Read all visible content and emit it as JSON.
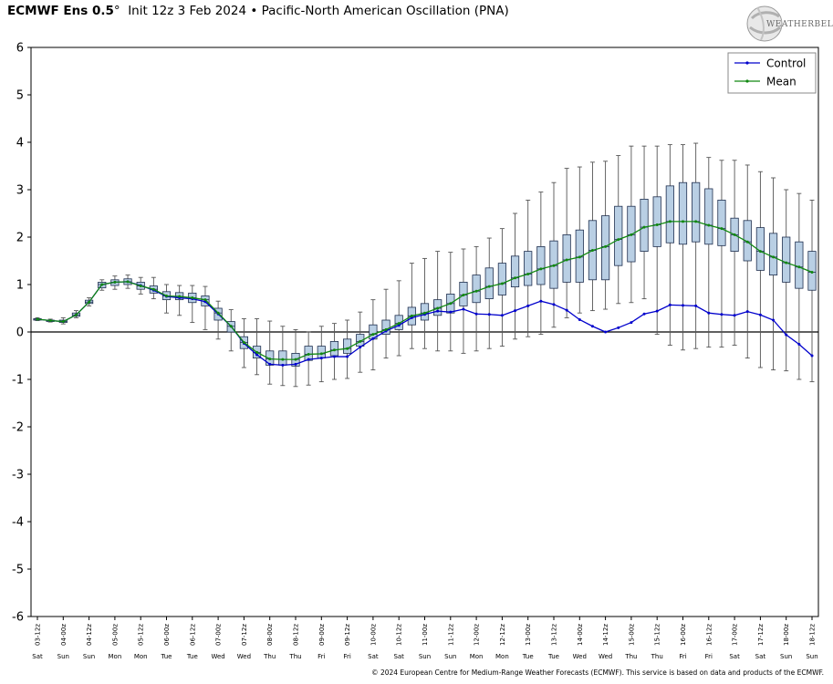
{
  "header": {
    "model": "ECMWF Ens 0.5",
    "degree": "°",
    "init": "Init 12z 3 Feb 2024",
    "bullet": "•",
    "index": "Pacific-North American Oscillation (PNA)"
  },
  "logo": {
    "text": "WEATHERBELL",
    "icon": "globe-logo-icon"
  },
  "footer": "© 2024 European Centre for Medium-Range Weather Forecasts (ECMWF). This service is based on data and products of the ECMWF.",
  "colors": {
    "control": "#0000cc",
    "mean": "#118811",
    "box_fill": "#b9cfe4",
    "whisker": "#555555"
  },
  "chart_data": {
    "type": "box-line",
    "ylim": [
      -6,
      6
    ],
    "yticks": [
      6,
      5,
      4,
      3,
      2,
      1,
      0,
      -1,
      -2,
      -3,
      -4,
      -5,
      -6
    ],
    "grid": false,
    "zero_line": true,
    "legend": {
      "position": "top-right",
      "entries": [
        "Control",
        "Mean"
      ]
    },
    "x_labels": [
      "03-12z",
      "04-00z",
      "04-12z",
      "05-00z",
      "05-12z",
      "06-00z",
      "06-12z",
      "07-00z",
      "07-12z",
      "08-00z",
      "08-12z",
      "09-00z",
      "09-12z",
      "10-00z",
      "10-12z",
      "11-00z",
      "11-12z",
      "12-00z",
      "12-12z",
      "13-00z",
      "13-12z",
      "14-00z",
      "14-12z",
      "15-00z",
      "15-12z",
      "16-00z",
      "16-12z",
      "17-00z",
      "17-12z",
      "18-00z",
      "18-12z"
    ],
    "day_labels": [
      "Sat",
      "Sun",
      "Sun",
      "Mon",
      "Mon",
      "Tue",
      "Tue",
      "Wed",
      "Wed",
      "Thu",
      "Thu",
      "Fri",
      "Fri",
      "Sat",
      "Sat",
      "Sun",
      "Sun",
      "Mon",
      "Mon",
      "Tue",
      "Tue",
      "Wed",
      "Wed",
      "Thu",
      "Thu",
      "Fri",
      "Fri",
      "Sat",
      "Sat",
      "Sun",
      "Sun"
    ],
    "series": [
      {
        "name": "Control",
        "values": [
          0.27,
          0.24,
          0.22,
          0.36,
          0.63,
          1.0,
          1.05,
          1.06,
          0.98,
          0.88,
          0.75,
          0.72,
          0.7,
          0.64,
          0.38,
          0.12,
          -0.24,
          -0.48,
          -0.68,
          -0.7,
          -0.68,
          -0.58,
          -0.55,
          -0.52,
          -0.52,
          -0.32,
          -0.14,
          0.02,
          0.14,
          0.3,
          0.37,
          0.44,
          0.42,
          0.48,
          0.38,
          0.37,
          0.35,
          0.45,
          0.55,
          0.65,
          0.58,
          0.46,
          0.26,
          0.12,
          0.0,
          0.09,
          0.2,
          0.38,
          0.44,
          0.57,
          0.56,
          0.55,
          0.4,
          0.37,
          0.35,
          0.43,
          0.36,
          0.25,
          -0.06,
          -0.26,
          -0.5
        ]
      },
      {
        "name": "Mean",
        "values": [
          0.27,
          0.24,
          0.22,
          0.36,
          0.63,
          1.0,
          1.05,
          1.06,
          0.97,
          0.9,
          0.76,
          0.75,
          0.72,
          0.68,
          0.4,
          0.12,
          -0.22,
          -0.43,
          -0.57,
          -0.58,
          -0.58,
          -0.47,
          -0.46,
          -0.38,
          -0.35,
          -0.2,
          -0.05,
          0.05,
          0.18,
          0.34,
          0.4,
          0.5,
          0.6,
          0.78,
          0.86,
          0.96,
          1.02,
          1.14,
          1.22,
          1.33,
          1.4,
          1.52,
          1.58,
          1.72,
          1.8,
          1.95,
          2.05,
          2.21,
          2.26,
          2.33,
          2.33,
          2.33,
          2.25,
          2.18,
          2.05,
          1.9,
          1.7,
          1.58,
          1.46,
          1.37,
          1.26
        ]
      }
    ],
    "boxes": [
      [
        0.24,
        0.25,
        0.27,
        0.28,
        0.3
      ],
      [
        0.21,
        0.22,
        0.24,
        0.25,
        0.27
      ],
      [
        0.17,
        0.2,
        0.22,
        0.25,
        0.3
      ],
      [
        0.3,
        0.33,
        0.36,
        0.4,
        0.45
      ],
      [
        0.55,
        0.6,
        0.63,
        0.67,
        0.72
      ],
      [
        0.88,
        0.93,
        1.0,
        1.05,
        1.1
      ],
      [
        0.9,
        0.98,
        1.05,
        1.1,
        1.18
      ],
      [
        0.92,
        1.0,
        1.06,
        1.12,
        1.2
      ],
      [
        0.8,
        0.9,
        0.97,
        1.05,
        1.15
      ],
      [
        0.7,
        0.82,
        0.9,
        0.97,
        1.15
      ],
      [
        0.4,
        0.68,
        0.76,
        0.85,
        1.0
      ],
      [
        0.35,
        0.68,
        0.75,
        0.83,
        0.98
      ],
      [
        0.2,
        0.62,
        0.72,
        0.82,
        0.98
      ],
      [
        0.05,
        0.55,
        0.68,
        0.76,
        0.96
      ],
      [
        -0.15,
        0.25,
        0.4,
        0.5,
        0.65
      ],
      [
        -0.4,
        0.0,
        0.12,
        0.22,
        0.47
      ],
      [
        -0.75,
        -0.35,
        -0.22,
        -0.1,
        0.28
      ],
      [
        -0.9,
        -0.55,
        -0.43,
        -0.3,
        0.28
      ],
      [
        -1.1,
        -0.7,
        -0.57,
        -0.4,
        0.23
      ],
      [
        -1.13,
        -0.7,
        -0.58,
        -0.4,
        0.12
      ],
      [
        -1.15,
        -0.72,
        -0.58,
        -0.45,
        0.05
      ],
      [
        -1.12,
        -0.6,
        -0.47,
        -0.3,
        0.0
      ],
      [
        -1.05,
        -0.55,
        -0.46,
        -0.3,
        0.12
      ],
      [
        -1.0,
        -0.5,
        -0.38,
        -0.2,
        0.18
      ],
      [
        -0.98,
        -0.45,
        -0.35,
        -0.15,
        0.25
      ],
      [
        -0.85,
        -0.3,
        -0.2,
        -0.05,
        0.42
      ],
      [
        -0.8,
        -0.15,
        -0.05,
        0.15,
        0.68
      ],
      [
        -0.55,
        -0.05,
        0.05,
        0.25,
        0.9
      ],
      [
        -0.5,
        0.05,
        0.18,
        0.35,
        1.08
      ],
      [
        -0.35,
        0.15,
        0.34,
        0.52,
        1.45
      ],
      [
        -0.35,
        0.25,
        0.4,
        0.6,
        1.55
      ],
      [
        -0.4,
        0.35,
        0.5,
        0.68,
        1.7
      ],
      [
        -0.4,
        0.4,
        0.6,
        0.8,
        1.68
      ],
      [
        -0.45,
        0.55,
        0.78,
        1.05,
        1.75
      ],
      [
        -0.4,
        0.62,
        0.86,
        1.2,
        1.8
      ],
      [
        -0.35,
        0.7,
        0.96,
        1.35,
        1.98
      ],
      [
        -0.3,
        0.78,
        1.02,
        1.45,
        2.18
      ],
      [
        -0.15,
        0.95,
        1.14,
        1.6,
        2.5
      ],
      [
        -0.1,
        0.98,
        1.22,
        1.7,
        2.78
      ],
      [
        -0.05,
        1.0,
        1.33,
        1.8,
        2.95
      ],
      [
        0.1,
        0.92,
        1.4,
        1.92,
        3.15
      ],
      [
        0.3,
        1.05,
        1.52,
        2.05,
        3.45
      ],
      [
        0.4,
        1.05,
        1.58,
        2.15,
        3.48
      ],
      [
        0.45,
        1.1,
        1.72,
        2.35,
        3.58
      ],
      [
        0.48,
        1.1,
        1.8,
        2.45,
        3.6
      ],
      [
        0.6,
        1.4,
        1.95,
        2.65,
        3.72
      ],
      [
        0.62,
        1.48,
        2.05,
        2.65,
        3.92
      ],
      [
        0.7,
        1.7,
        2.21,
        2.8,
        3.92
      ],
      [
        -0.05,
        1.8,
        2.26,
        2.85,
        3.92
      ],
      [
        -0.28,
        1.88,
        2.33,
        3.08,
        3.95
      ],
      [
        -0.38,
        1.85,
        2.33,
        3.15,
        3.95
      ],
      [
        -0.35,
        1.9,
        2.33,
        3.15,
        3.98
      ],
      [
        -0.32,
        1.85,
        2.25,
        3.02,
        3.68
      ],
      [
        -0.32,
        1.82,
        2.18,
        2.78,
        3.62
      ],
      [
        -0.28,
        1.7,
        2.05,
        2.4,
        3.62
      ],
      [
        -0.55,
        1.5,
        1.9,
        2.35,
        3.52
      ],
      [
        -0.75,
        1.3,
        1.7,
        2.2,
        3.38
      ],
      [
        -0.8,
        1.2,
        1.58,
        2.08,
        3.25
      ],
      [
        -0.82,
        1.05,
        1.46,
        2.0,
        3.0
      ],
      [
        -1.0,
        0.92,
        1.37,
        1.9,
        2.92
      ],
      [
        -1.05,
        0.88,
        1.26,
        1.7,
        2.78
      ]
    ]
  }
}
